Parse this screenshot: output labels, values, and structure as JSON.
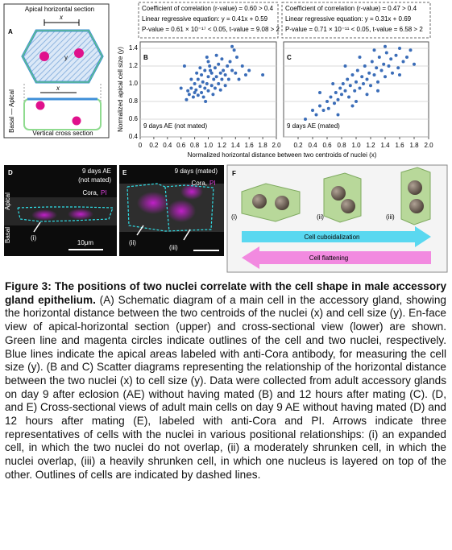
{
  "panel_a": {
    "letter": "A",
    "top_title": "Apical horizontal section",
    "x_top": "x",
    "y": "y",
    "x_bottom": "x",
    "side": "Basal — Apical",
    "bottom_title": "Vertical cross section"
  },
  "chart_data": [
    {
      "type": "scatter",
      "panel": "B",
      "label": "9 days AE (not mated)",
      "stats": [
        "Coefficient of correlation (r-value) = 0.60 > 0.4",
        "Linear regressive equation: y = 0.41x + 0.59",
        "P-value = 0.61 × 10⁻¹⁷ < 0.05,  t-value = 9.08 > 2"
      ],
      "ylabel": "Normalized apical cell size (y)",
      "xlabel": "Normalized horizontal distance between two centroids of nuclei (x)",
      "color": "#3b6db8",
      "grid": true,
      "xlim": [
        0,
        2
      ],
      "ylim": [
        0.4,
        1.4
      ],
      "xticks": [
        0,
        0.2,
        0.4,
        0.6,
        0.8,
        {
          "value": 1,
          "label": "1.0"
        },
        1.2,
        1.4,
        1.6,
        1.8,
        {
          "value": 2,
          "label": "2.0"
        }
      ],
      "yticks": [
        0.4,
        0.6,
        0.8,
        {
          "value": 1,
          "label": "1.0"
        },
        1.2,
        1.4
      ],
      "x": [
        0.7,
        0.72,
        0.75,
        0.78,
        0.8,
        0.8,
        0.82,
        0.85,
        0.85,
        0.88,
        0.9,
        0.9,
        0.92,
        0.95,
        0.95,
        0.98,
        1.0,
        1.0,
        1.02,
        1.05,
        1.05,
        1.08,
        1.1,
        1.1,
        1.12,
        1.15,
        1.15,
        1.18,
        1.2,
        1.2,
        1.22,
        1.25,
        1.28,
        1.3,
        1.32,
        1.35,
        1.38,
        1.4,
        1.42,
        1.5,
        1.55,
        1.6,
        1.8,
        0.65,
        0.6,
        1.35,
        0.88,
        0.93,
        1.0,
        1.07,
        1.25,
        0.98,
        1.12,
        0.75,
        1.45,
        0.68,
        0.83,
        1.18,
        1.03,
        0.96
      ],
      "values": [
        0.92,
        0.88,
        0.95,
        0.85,
        0.9,
        1.0,
        0.93,
        0.87,
        1.05,
        0.97,
        0.9,
        1.1,
        1.02,
        0.95,
        1.15,
        1.0,
        0.92,
        1.08,
        1.2,
        0.98,
        1.12,
        1.05,
        0.95,
        1.18,
        1.08,
        1.0,
        1.22,
        1.12,
        1.05,
        1.28,
        1.15,
        1.1,
        1.2,
        1.05,
        1.25,
        1.15,
        1.38,
        1.12,
        1.3,
        1.2,
        1.1,
        1.15,
        1.1,
        1.2,
        0.95,
        1.42,
        1.18,
        0.85,
        1.25,
        0.88,
        0.98,
        1.3,
        1.32,
        1.05,
        1.05,
        0.82,
        1.12,
        0.93,
        1.15,
        0.8
      ]
    },
    {
      "type": "scatter",
      "panel": "C",
      "label": "9 days AE (mated)",
      "stats": [
        "Coefficient of correlation (r-value) = 0.47 > 0.4",
        "Linear regressive equation: y = 0.31x + 0.69",
        "P-value = 0.71 × 10⁻¹¹ < 0.05,  t-value = 6.58 > 2"
      ],
      "color": "#3b6db8",
      "grid": true,
      "xlim": [
        0,
        2
      ],
      "ylim": [
        0.4,
        1.4
      ],
      "xticks": [
        0.2,
        0.4,
        0.6,
        0.8,
        {
          "value": 1,
          "label": "1.0"
        },
        1.2,
        1.4,
        1.6,
        1.8,
        {
          "value": 2,
          "label": "2.0"
        }
      ],
      "x": [
        0.3,
        0.45,
        0.5,
        0.55,
        0.6,
        0.62,
        0.65,
        0.7,
        0.72,
        0.75,
        0.78,
        0.8,
        0.82,
        0.85,
        0.88,
        0.9,
        0.92,
        0.95,
        0.98,
        1.0,
        1.02,
        1.05,
        1.08,
        1.1,
        1.12,
        1.15,
        1.18,
        1.2,
        1.22,
        1.25,
        1.28,
        1.3,
        1.32,
        1.35,
        1.38,
        1.4,
        1.42,
        1.45,
        1.48,
        1.5,
        1.55,
        1.58,
        1.6,
        1.65,
        1.7,
        1.75,
        1.8,
        0.5,
        0.68,
        0.85,
        1.0,
        1.15,
        1.3,
        1.05,
        0.4,
        0.75,
        1.6,
        1.25,
        0.95,
        1.4
      ],
      "values": [
        0.6,
        0.65,
        0.75,
        0.7,
        0.8,
        0.72,
        0.85,
        0.78,
        0.9,
        0.82,
        0.95,
        0.88,
        1.0,
        0.92,
        1.05,
        0.85,
        0.98,
        1.1,
        0.92,
        1.02,
        1.15,
        0.95,
        1.08,
        1.0,
        1.2,
        1.05,
        1.12,
        0.98,
        1.25,
        1.1,
        1.18,
        1.02,
        1.3,
        1.15,
        1.22,
        1.08,
        1.35,
        1.2,
        1.28,
        1.12,
        1.32,
        1.18,
        1.4,
        1.25,
        1.3,
        1.38,
        1.22,
        0.9,
        1.0,
        1.2,
        0.8,
        0.88,
        0.92,
        1.3,
        0.7,
        0.65,
        1.1,
        1.38,
        0.75,
        1.42
      ]
    }
  ],
  "panel_d": {
    "letter": "D",
    "condition_1": "9 days AE",
    "condition_2": "(not mated)",
    "stain": "Cora,",
    "stain_pi": "PI",
    "apical": "Apical",
    "basal": "Basal",
    "arrow_label": "(i)",
    "scale": "10μm"
  },
  "panel_e": {
    "letter": "E",
    "condition": "9 days (mated)",
    "stain": "Cora,",
    "stain_pi": "PI",
    "arrow_label_1": "(ii)",
    "arrow_label_2": "(iii)"
  },
  "panel_f": {
    "letter": "F",
    "cell_1": "(i)",
    "cell_2": "(ii)",
    "cell_3": "(iii)",
    "arrow_1": "Cell cuboidalization",
    "arrow_2": "Cell flattening"
  },
  "caption": {
    "title": "Figure 3: The positions of two nuclei correlate with the cell shape in male accessory gland epithelium.",
    "body": " (A) Schematic diagram of a main cell in the accessory gland, showing the horizontal distance between the two centroids of the nuclei (x) and cell size (y). En-face view of apical-horizontal section (upper) and cross-sectional view (lower) are shown. Green line and magenta circles indicate outlines of the cell and two nuclei, respectively. Blue lines indicate the apical areas labeled with anti-Cora antibody, for measuring the cell size (y). (B and C) Scatter diagrams representing the relationship of the horizontal distance between the two nuclei (x) to cell size (y). Data were collected from adult accessory glands on day 9 after eclosion (AE) without having mated (B) and 12 hours after mating (C). (D, and E) Cross-sectional views of adult main cells on day 9 AE without having mated (D) and 12 hours after mating (E), labeled with anti-Cora and PI. Arrows indicate three representatives of cells with the nuclei in various positional relationships: (i) an expanded cell, in which the two nuclei do not overlap, (ii) a moderately shrunken cell, in which the nuclei overlap, (iii) a heavily shrunken cell, in which one nucleus is layered on top of the other. Outlines of cells are indicated by dashed lines."
  }
}
